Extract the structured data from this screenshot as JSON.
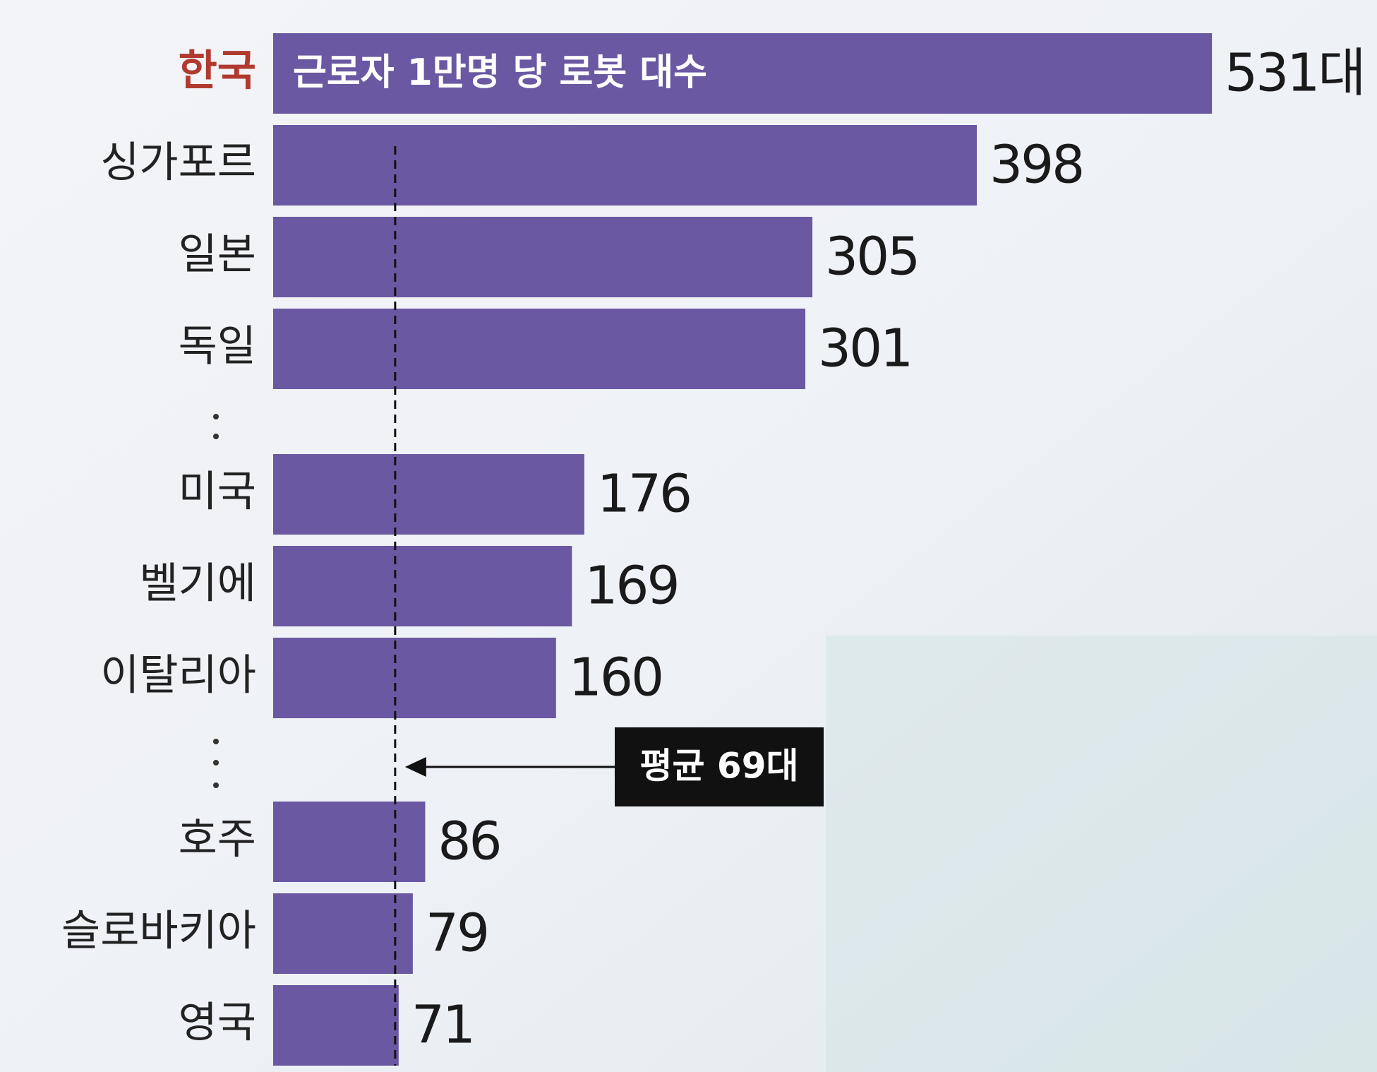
{
  "chart_data": {
    "type": "bar",
    "orientation": "horizontal",
    "title": "근로자 1만명 당 로봇 대수",
    "categories": [
      "한국",
      "싱가포르",
      "일본",
      "독일",
      "미국",
      "벨기에",
      "이탈리아",
      "호주",
      "슬로바키아",
      "영국"
    ],
    "values": [
      531,
      398,
      305,
      301,
      176,
      169,
      160,
      86,
      79,
      71
    ],
    "value_labels": [
      "531대",
      "398",
      "305",
      "301",
      "176",
      "169",
      "160",
      "86",
      "79",
      "71"
    ],
    "color": "#6a58a2",
    "label_colors": [
      "#b13a30",
      "#222222",
      "#222222",
      "#222222",
      "#222222",
      "#222222",
      "#222222",
      "#222222",
      "#222222",
      "#222222"
    ],
    "xlim": [
      0,
      600
    ],
    "reference_line": {
      "value": 69,
      "label": "평균 69대"
    }
  }
}
